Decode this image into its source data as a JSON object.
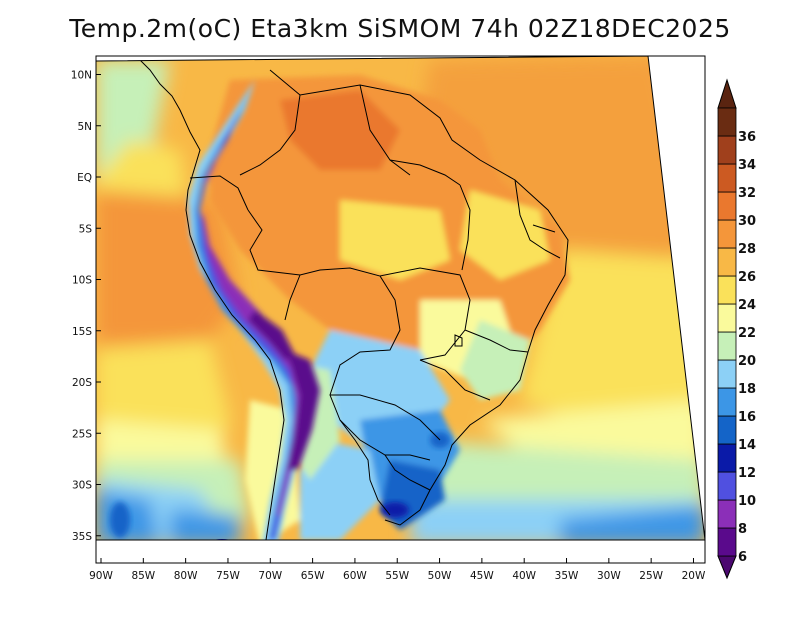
{
  "title": "Temp.2m(oC) Eta3km SiSMOM 74h 02Z18DEC2025",
  "map": {
    "lat_labels": [
      "10N",
      "5N",
      "EQ",
      "5S",
      "10S",
      "15S",
      "20S",
      "25S",
      "30S",
      "35S"
    ],
    "lat_values": [
      10,
      5,
      0,
      -5,
      -10,
      -15,
      -20,
      -25,
      -30,
      -35
    ],
    "lon_labels": [
      "90W",
      "85W",
      "80W",
      "75W",
      "70W",
      "65W",
      "60W",
      "55W",
      "50W",
      "45W",
      "40W",
      "35W",
      "30W",
      "25W",
      "20W"
    ],
    "lon_values": [
      -90,
      -85,
      -80,
      -75,
      -70,
      -65,
      -60,
      -55,
      -50,
      -45,
      -40,
      -35,
      -30,
      -25,
      -20
    ]
  },
  "colorbar": {
    "labels": [
      "6",
      "8",
      "10",
      "12",
      "14",
      "16",
      "18",
      "20",
      "22",
      "24",
      "26",
      "28",
      "30",
      "32",
      "34",
      "36"
    ],
    "colors": [
      "#5a0a8c",
      "#8b2fb8",
      "#5050e0",
      "#0a1aa8",
      "#1464c8",
      "#3c96e6",
      "#8cd0f6",
      "#c6f0b8",
      "#fafa9c",
      "#fae15a",
      "#f8b846",
      "#f4963a",
      "#ea782e",
      "#cc5a22",
      "#a0401c",
      "#6a2c12"
    ],
    "low_color": "#4b0870",
    "high_color": "#5a2410"
  }
}
